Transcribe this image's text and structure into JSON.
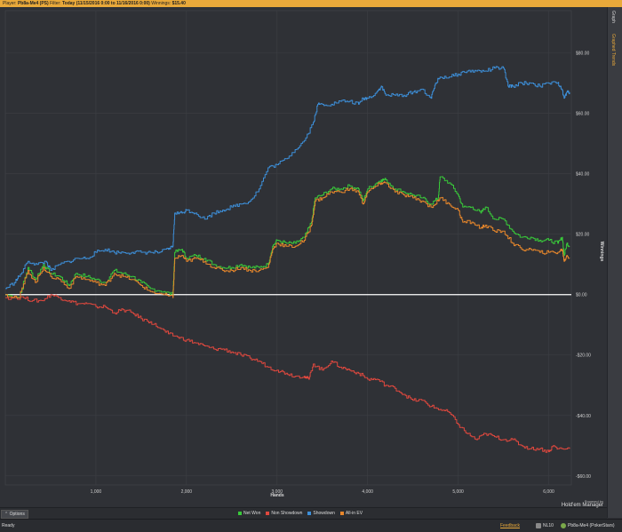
{
  "header": {
    "player_label": "Player:",
    "player_name": "Pb8a-Me4 (PS)",
    "filter_label": "Filter:",
    "filter_value": "Today (11/15/2016 0:00 to 11/16/2016 0:00)",
    "winnings_label": "Winnings:",
    "winnings_value": "$15.40"
  },
  "sidebar": {
    "tabs": [
      "Graph",
      "Graphed Trends"
    ]
  },
  "footer": {
    "options_label": "Options",
    "powered_by": "Powered by",
    "brand": "Hold'em Manager",
    "status": "Ready",
    "feedback": "Feedback",
    "stake": "NL10",
    "player": "Pb8a-Me4 (PokerStars)"
  },
  "colors": {
    "accent": "#e9a93a",
    "net_won": "#39c93a",
    "non_showdown": "#e0483e",
    "showdown": "#3d8fd9",
    "allin_ev": "#e8872b"
  },
  "chart_data": {
    "type": "line",
    "xlabel": "Hands",
    "ylabel": "Winnings",
    "xlim": [
      0,
      6250
    ],
    "ylim": [
      -63,
      94
    ],
    "x_ticks": [
      {
        "v": 1000,
        "label": "1,000"
      },
      {
        "v": 2000,
        "label": "2,000"
      },
      {
        "v": 3000,
        "label": "3,000"
      },
      {
        "v": 4000,
        "label": "4,000"
      },
      {
        "v": 5000,
        "label": "5,000"
      },
      {
        "v": 6000,
        "label": "6,000"
      }
    ],
    "y_ticks": [
      {
        "v": 80,
        "label": "$80.00"
      },
      {
        "v": 60,
        "label": "$60.00"
      },
      {
        "v": 40,
        "label": "$40.00"
      },
      {
        "v": 20,
        "label": "$20.00"
      },
      {
        "v": 0,
        "label": "$0.00"
      },
      {
        "v": -20,
        "label": "-$20.00"
      },
      {
        "v": -40,
        "label": "-$40.00"
      },
      {
        "v": -60,
        "label": "-$60.00"
      }
    ],
    "grid": true,
    "legend_position": "bottom",
    "series": [
      {
        "name": "Net Won",
        "color": "#39c93a",
        "points": [
          [
            0,
            0
          ],
          [
            150,
            -1
          ],
          [
            250,
            9
          ],
          [
            330,
            5
          ],
          [
            420,
            10
          ],
          [
            500,
            7
          ],
          [
            600,
            6
          ],
          [
            700,
            3
          ],
          [
            780,
            7
          ],
          [
            900,
            6
          ],
          [
            1000,
            5
          ],
          [
            1100,
            4
          ],
          [
            1200,
            8
          ],
          [
            1300,
            7
          ],
          [
            1400,
            6
          ],
          [
            1500,
            4
          ],
          [
            1600,
            2
          ],
          [
            1750,
            1
          ],
          [
            1850,
            0
          ],
          [
            1870,
            14
          ],
          [
            1950,
            15
          ],
          [
            2000,
            12
          ],
          [
            2100,
            13
          ],
          [
            2200,
            12
          ],
          [
            2300,
            10
          ],
          [
            2400,
            9
          ],
          [
            2500,
            9
          ],
          [
            2600,
            10
          ],
          [
            2700,
            9
          ],
          [
            2800,
            9
          ],
          [
            2900,
            10
          ],
          [
            2950,
            16
          ],
          [
            3000,
            18
          ],
          [
            3100,
            17
          ],
          [
            3200,
            17
          ],
          [
            3300,
            19
          ],
          [
            3380,
            24
          ],
          [
            3420,
            32
          ],
          [
            3500,
            33
          ],
          [
            3600,
            35
          ],
          [
            3700,
            35
          ],
          [
            3800,
            36
          ],
          [
            3900,
            35
          ],
          [
            3950,
            31
          ],
          [
            4000,
            35
          ],
          [
            4100,
            37
          ],
          [
            4150,
            38
          ],
          [
            4200,
            38
          ],
          [
            4300,
            35
          ],
          [
            4400,
            34
          ],
          [
            4500,
            33
          ],
          [
            4600,
            32
          ],
          [
            4700,
            30
          ],
          [
            4780,
            32
          ],
          [
            4800,
            39
          ],
          [
            4900,
            37
          ],
          [
            5000,
            33
          ],
          [
            5050,
            29
          ],
          [
            5150,
            29
          ],
          [
            5250,
            27
          ],
          [
            5300,
            29
          ],
          [
            5400,
            25
          ],
          [
            5500,
            25
          ],
          [
            5600,
            21
          ],
          [
            5700,
            19
          ],
          [
            5800,
            19
          ],
          [
            5900,
            18
          ],
          [
            6000,
            18
          ],
          [
            6100,
            17
          ],
          [
            6150,
            19
          ],
          [
            6170,
            13
          ],
          [
            6200,
            17
          ],
          [
            6230,
            16
          ]
        ]
      },
      {
        "name": "Non Showdown",
        "color": "#e0483e",
        "points": [
          [
            0,
            -1
          ],
          [
            200,
            -1
          ],
          [
            300,
            -2
          ],
          [
            400,
            -2
          ],
          [
            500,
            0
          ],
          [
            600,
            -1
          ],
          [
            700,
            -2
          ],
          [
            800,
            -3
          ],
          [
            900,
            -3
          ],
          [
            1000,
            -4
          ],
          [
            1100,
            -4
          ],
          [
            1200,
            -6
          ],
          [
            1300,
            -5
          ],
          [
            1400,
            -6
          ],
          [
            1500,
            -8
          ],
          [
            1600,
            -9
          ],
          [
            1700,
            -11
          ],
          [
            1800,
            -13
          ],
          [
            1900,
            -14
          ],
          [
            2000,
            -15
          ],
          [
            2100,
            -16
          ],
          [
            2200,
            -17
          ],
          [
            2300,
            -18
          ],
          [
            2400,
            -18
          ],
          [
            2500,
            -19
          ],
          [
            2600,
            -20
          ],
          [
            2700,
            -21
          ],
          [
            2800,
            -22
          ],
          [
            2900,
            -24
          ],
          [
            3000,
            -25
          ],
          [
            3100,
            -26
          ],
          [
            3200,
            -27
          ],
          [
            3300,
            -27
          ],
          [
            3350,
            -28
          ],
          [
            3400,
            -23
          ],
          [
            3500,
            -25
          ],
          [
            3600,
            -22
          ],
          [
            3700,
            -24
          ],
          [
            3800,
            -25
          ],
          [
            3900,
            -26
          ],
          [
            4000,
            -28
          ],
          [
            4100,
            -28
          ],
          [
            4200,
            -30
          ],
          [
            4300,
            -31
          ],
          [
            4400,
            -33
          ],
          [
            4500,
            -35
          ],
          [
            4600,
            -35
          ],
          [
            4700,
            -37
          ],
          [
            4800,
            -38
          ],
          [
            4900,
            -39
          ],
          [
            5000,
            -43
          ],
          [
            5100,
            -46
          ],
          [
            5200,
            -48
          ],
          [
            5300,
            -46
          ],
          [
            5400,
            -47
          ],
          [
            5500,
            -48
          ],
          [
            5600,
            -48
          ],
          [
            5700,
            -50
          ],
          [
            5800,
            -51
          ],
          [
            5900,
            -51
          ],
          [
            6000,
            -52
          ],
          [
            6050,
            -50
          ],
          [
            6100,
            -51
          ],
          [
            6230,
            -51
          ]
        ]
      },
      {
        "name": "Showdown",
        "color": "#3d8fd9",
        "points": [
          [
            0,
            2
          ],
          [
            100,
            4
          ],
          [
            150,
            6
          ],
          [
            250,
            11
          ],
          [
            350,
            10
          ],
          [
            450,
            11
          ],
          [
            500,
            8
          ],
          [
            600,
            10
          ],
          [
            700,
            11
          ],
          [
            800,
            12
          ],
          [
            900,
            12
          ],
          [
            1000,
            14
          ],
          [
            1100,
            15
          ],
          [
            1200,
            14
          ],
          [
            1300,
            14
          ],
          [
            1400,
            14
          ],
          [
            1500,
            14
          ],
          [
            1600,
            14
          ],
          [
            1700,
            14
          ],
          [
            1800,
            15
          ],
          [
            1850,
            16
          ],
          [
            1870,
            27
          ],
          [
            1950,
            27
          ],
          [
            2000,
            28
          ],
          [
            2100,
            27
          ],
          [
            2200,
            25
          ],
          [
            2300,
            27
          ],
          [
            2400,
            28
          ],
          [
            2500,
            29
          ],
          [
            2600,
            30
          ],
          [
            2700,
            31
          ],
          [
            2800,
            35
          ],
          [
            2900,
            42
          ],
          [
            3000,
            43
          ],
          [
            3100,
            45
          ],
          [
            3200,
            48
          ],
          [
            3300,
            51
          ],
          [
            3400,
            57
          ],
          [
            3450,
            63
          ],
          [
            3500,
            63
          ],
          [
            3600,
            63
          ],
          [
            3700,
            64
          ],
          [
            3800,
            64
          ],
          [
            3900,
            63
          ],
          [
            3950,
            65
          ],
          [
            4000,
            65
          ],
          [
            4100,
            67
          ],
          [
            4150,
            69
          ],
          [
            4200,
            66
          ],
          [
            4300,
            66
          ],
          [
            4400,
            66
          ],
          [
            4500,
            67
          ],
          [
            4600,
            68
          ],
          [
            4700,
            65
          ],
          [
            4750,
            70
          ],
          [
            4800,
            72
          ],
          [
            4900,
            72
          ],
          [
            5000,
            73
          ],
          [
            5100,
            74
          ],
          [
            5200,
            74
          ],
          [
            5300,
            74
          ],
          [
            5400,
            75
          ],
          [
            5500,
            75
          ],
          [
            5550,
            69
          ],
          [
            5600,
            69
          ],
          [
            5700,
            70
          ],
          [
            5800,
            70
          ],
          [
            5900,
            69
          ],
          [
            6000,
            70
          ],
          [
            6100,
            70
          ],
          [
            6130,
            69
          ],
          [
            6170,
            65
          ],
          [
            6200,
            67
          ],
          [
            6230,
            67
          ]
        ]
      },
      {
        "name": "All-in EV",
        "color": "#e8872b",
        "points": [
          [
            0,
            0
          ],
          [
            150,
            -1
          ],
          [
            250,
            8
          ],
          [
            330,
            4
          ],
          [
            420,
            9
          ],
          [
            500,
            6
          ],
          [
            600,
            5
          ],
          [
            700,
            2
          ],
          [
            780,
            6
          ],
          [
            900,
            5
          ],
          [
            1000,
            4
          ],
          [
            1100,
            3
          ],
          [
            1200,
            7
          ],
          [
            1300,
            6
          ],
          [
            1400,
            5
          ],
          [
            1500,
            3
          ],
          [
            1600,
            1
          ],
          [
            1750,
            0
          ],
          [
            1850,
            -1
          ],
          [
            1870,
            12
          ],
          [
            1950,
            13
          ],
          [
            2000,
            11
          ],
          [
            2100,
            12
          ],
          [
            2200,
            11
          ],
          [
            2300,
            9
          ],
          [
            2400,
            8
          ],
          [
            2500,
            8
          ],
          [
            2600,
            9
          ],
          [
            2700,
            8
          ],
          [
            2800,
            8
          ],
          [
            2900,
            9
          ],
          [
            2950,
            15
          ],
          [
            3000,
            17
          ],
          [
            3100,
            16
          ],
          [
            3200,
            16
          ],
          [
            3300,
            18
          ],
          [
            3380,
            23
          ],
          [
            3420,
            31
          ],
          [
            3500,
            32
          ],
          [
            3600,
            34
          ],
          [
            3700,
            34
          ],
          [
            3800,
            35
          ],
          [
            3900,
            34
          ],
          [
            3950,
            30
          ],
          [
            4000,
            34
          ],
          [
            4100,
            36
          ],
          [
            4150,
            37
          ],
          [
            4200,
            37
          ],
          [
            4300,
            34
          ],
          [
            4400,
            33
          ],
          [
            4500,
            32
          ],
          [
            4600,
            31
          ],
          [
            4700,
            29
          ],
          [
            4780,
            31
          ],
          [
            4800,
            32
          ],
          [
            4900,
            30
          ],
          [
            5000,
            28
          ],
          [
            5050,
            24
          ],
          [
            5150,
            24
          ],
          [
            5250,
            22
          ],
          [
            5300,
            23
          ],
          [
            5400,
            21
          ],
          [
            5500,
            21
          ],
          [
            5600,
            17
          ],
          [
            5700,
            15
          ],
          [
            5800,
            15
          ],
          [
            5900,
            14
          ],
          [
            6000,
            14
          ],
          [
            6100,
            14
          ],
          [
            6150,
            15
          ],
          [
            6170,
            11
          ],
          [
            6200,
            13
          ],
          [
            6230,
            12
          ]
        ]
      }
    ]
  }
}
